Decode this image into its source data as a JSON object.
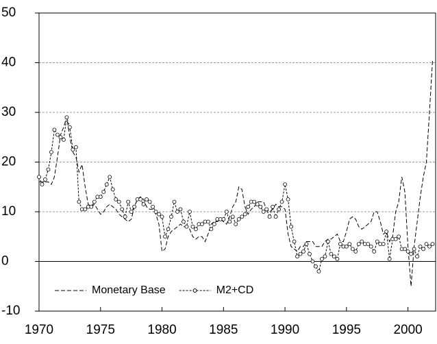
{
  "chart_data": {
    "type": "line",
    "x": [
      1970,
      1970.25,
      1970.5,
      1970.75,
      1971,
      1971.25,
      1971.5,
      1971.75,
      1972,
      1972.25,
      1972.5,
      1972.75,
      1973,
      1973.25,
      1973.5,
      1973.75,
      1974,
      1974.25,
      1974.5,
      1974.75,
      1975,
      1975.25,
      1975.5,
      1975.75,
      1976,
      1976.25,
      1976.5,
      1976.75,
      1977,
      1977.25,
      1977.5,
      1977.75,
      1978,
      1978.25,
      1978.5,
      1978.75,
      1979,
      1979.25,
      1979.5,
      1979.75,
      1980,
      1980.25,
      1980.5,
      1980.75,
      1981,
      1981.25,
      1981.5,
      1981.75,
      1982,
      1982.25,
      1982.5,
      1982.75,
      1983,
      1983.25,
      1983.5,
      1983.75,
      1984,
      1984.25,
      1984.5,
      1984.75,
      1985,
      1985.25,
      1985.5,
      1985.75,
      1986,
      1986.25,
      1986.5,
      1986.75,
      1987,
      1987.25,
      1987.5,
      1987.75,
      1988,
      1988.25,
      1988.5,
      1988.75,
      1989,
      1989.25,
      1989.5,
      1989.75,
      1990,
      1990.25,
      1990.5,
      1990.75,
      1991,
      1991.25,
      1991.5,
      1991.75,
      1992,
      1992.25,
      1992.5,
      1992.75,
      1993,
      1993.25,
      1993.5,
      1993.75,
      1994,
      1994.25,
      1994.5,
      1994.75,
      1995,
      1995.25,
      1995.5,
      1995.75,
      1996,
      1996.25,
      1996.5,
      1996.75,
      1997,
      1997.25,
      1997.5,
      1997.75,
      1998,
      1998.25,
      1998.5,
      1998.75,
      1999,
      1999.25,
      1999.5,
      1999.75,
      2000,
      2000.25,
      2000.5,
      2000.75,
      2001,
      2001.25,
      2001.5,
      2001.75,
      2002
    ],
    "series": [
      {
        "name": "Monetary Base",
        "color": "#000000",
        "dash": "6,3",
        "marker": "none",
        "values": [
          16,
          16,
          16,
          16,
          15.5,
          17,
          21,
          25.5,
          27,
          29,
          25,
          22,
          21,
          18,
          19.5,
          15,
          11.5,
          11,
          11.5,
          10.5,
          9.5,
          10,
          11,
          11.5,
          11,
          10.5,
          9.5,
          9,
          8.5,
          8,
          8.5,
          11,
          12.5,
          13,
          12.5,
          11,
          10.5,
          10.5,
          9.5,
          7.5,
          2,
          2.5,
          5,
          6,
          6.5,
          7,
          7.5,
          7,
          7,
          6.5,
          5,
          4.5,
          5,
          5,
          4,
          5.5,
          7.5,
          8,
          8,
          8.5,
          8,
          7.5,
          9,
          11,
          12,
          15,
          14.5,
          11,
          9.5,
          10.5,
          11,
          12,
          12,
          12,
          10.5,
          10,
          10.5,
          11.5,
          11,
          11,
          10.5,
          5.5,
          3,
          2.5,
          2,
          3,
          3,
          4,
          4,
          4,
          3,
          3,
          3,
          4,
          4.5,
          4.5,
          5,
          5.5,
          4,
          4,
          6,
          8.5,
          9,
          8.5,
          7,
          6.5,
          7,
          7.5,
          8,
          10,
          10,
          8,
          5.5,
          6,
          4,
          5,
          10,
          12,
          17,
          14,
          3,
          -5,
          3,
          8,
          13,
          17,
          20,
          30,
          40.5
        ]
      },
      {
        "name": "M2+CD",
        "color": "#000000",
        "dash": "3,2",
        "marker": "circle",
        "values": [
          17,
          15.5,
          16.5,
          18.5,
          22,
          26.5,
          25.5,
          25,
          24.5,
          29,
          27,
          22.5,
          23,
          12,
          10.5,
          10.5,
          11,
          11,
          12,
          13,
          13,
          14,
          15.5,
          17,
          14.5,
          12.5,
          12,
          10.5,
          9,
          12,
          10,
          11,
          12.5,
          12.5,
          11.5,
          12.5,
          12,
          11,
          10,
          9.5,
          9,
          5,
          6.5,
          9,
          12,
          10,
          10.5,
          8,
          7,
          10,
          7,
          6.5,
          7.5,
          7.5,
          8,
          8,
          6.5,
          7.5,
          8.5,
          8.5,
          8.5,
          10,
          8,
          9,
          7.5,
          8.5,
          9,
          9.5,
          11,
          12,
          12,
          11.5,
          11,
          10,
          10.5,
          9,
          11,
          9,
          10.5,
          12,
          15.5,
          12.5,
          7,
          4,
          1,
          1.5,
          2,
          3.5,
          1.5,
          0,
          -1,
          -2,
          0.5,
          1,
          4,
          1.5,
          1,
          0.5,
          3.5,
          3,
          3,
          3.5,
          2.5,
          2,
          3.5,
          4,
          3.5,
          3.5,
          3,
          2,
          4,
          3.5,
          3.5,
          6,
          0.5,
          4.5,
          4.5,
          5,
          2.5,
          2.5,
          2,
          1.5,
          2.5,
          1,
          3,
          2.5,
          3.5,
          3,
          3.5
        ]
      }
    ],
    "xlim": [
      1970,
      2002.25
    ],
    "xticks": [
      1970,
      1975,
      1980,
      1985,
      1990,
      1995,
      2000
    ],
    "ylim": [
      -10,
      50
    ],
    "yticks": [
      -10,
      0,
      10,
      20,
      30,
      40,
      50
    ],
    "grid": true,
    "legend": "lower left"
  }
}
